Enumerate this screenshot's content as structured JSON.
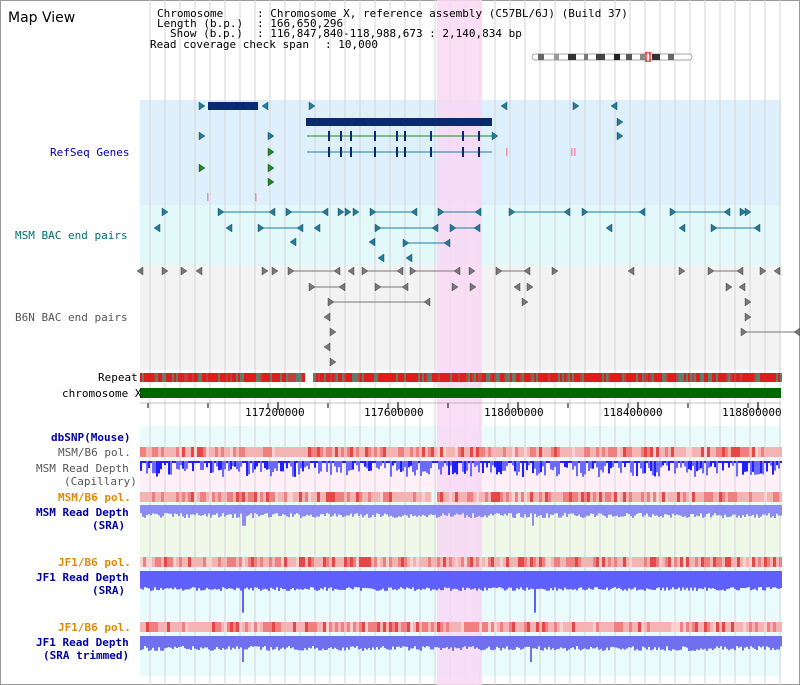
{
  "title": "Map View",
  "info": {
    "l1_key": "Chromosome",
    "l1_val": ": Chromosome X, reference assembly (C57BL/6J) (Build 37)",
    "l2_key": "Length (b.p.)",
    "l2_val": ": 166,650,296",
    "l3_key": "Show (b.p.)",
    "l3_val": ": 116,847,840-118,988,673 : 2,140,834 bp",
    "l4_key": "Read coverage check span",
    "l4_val": ": 10,000"
  },
  "tracks": {
    "refseq": "RefSeq Genes",
    "msm_bac": "MSM BAC end pairs",
    "b6n_bac": "B6N BAC end pairs",
    "repeat": "Repeat",
    "chrom": "chromosome X",
    "dbsnp": "dbSNP(Mouse)",
    "msm_pol": "MSM/B6 pol.",
    "msm_depth_cap_1": "MSM Read Depth",
    "msm_depth_cap_2": "(Capillary)",
    "msm_pol2": "MSM/B6 pol.",
    "msm_depth_sra_1": "MSM Read Depth",
    "msm_depth_sra_2": "(SRA)",
    "jf1_pol": "JF1/B6 pol.",
    "jf1_depth_1": "JF1 Read Depth",
    "jf1_depth_2": "(SRA)",
    "jf1_pol2": "JF1/B6 pol.",
    "jf1_trim_1": "JF1 Read Depth",
    "jf1_trim_2": "(SRA trimmed)"
  },
  "axis_ticks": [
    "117200000",
    "117600000",
    "118000000",
    "118400000",
    "118800000"
  ],
  "colors": {
    "refseq_bg": "#ddf0fb",
    "msm_bac_bg": "#e2f8fb",
    "b6n_bac_bg": "#f3f3f3",
    "highlight": "#f8d8f4",
    "gene": "#0b2a6b",
    "teal": "#1a7ea0",
    "green": "#1a8a1a",
    "chrom_bar": "#006600",
    "depth_blue": "#4a4aff",
    "label_blue": "#0000aa",
    "label_teal": "#007070",
    "label_orange": "#e08a00",
    "label_grey": "#444444"
  }
}
